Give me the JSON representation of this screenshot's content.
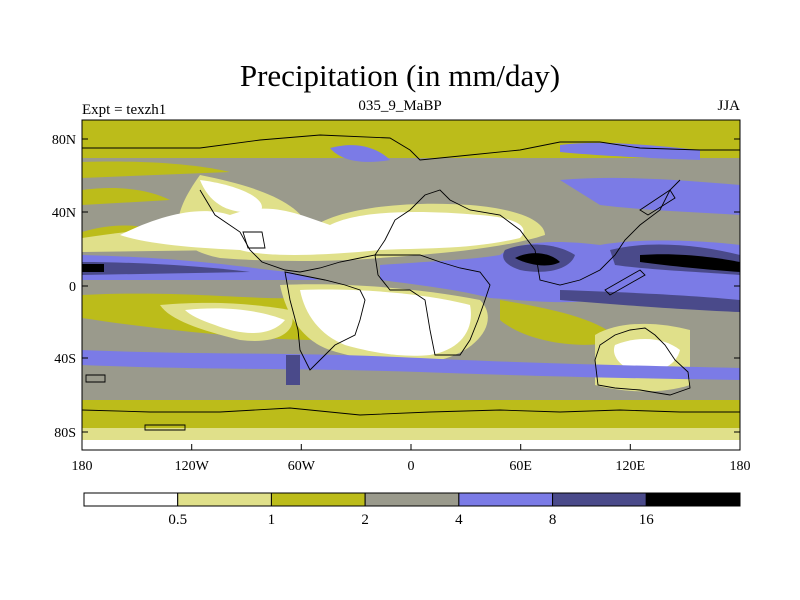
{
  "title": "Precipitation (in mm/day)",
  "left_label": "Expt = texzh1",
  "center_label": "035_9_MaBP",
  "right_label": "JJA",
  "colors": {
    "c1": "#ffffff",
    "c2": "#e0e08a",
    "c3": "#bcbc1a",
    "c4": "#9a9a8c",
    "c5": "#7b7be6",
    "c6": "#4a4a8a",
    "c7": "#000000",
    "coast": "#000000"
  },
  "map": {
    "y_tick_labels": [
      "80N",
      "40N",
      "0",
      "40S",
      "80S"
    ],
    "x_tick_labels": [
      "180",
      "120W",
      "60W",
      "0",
      "60E",
      "120E",
      "180"
    ]
  },
  "colorbar": {
    "labels": [
      "0.5",
      "1",
      "2",
      "4",
      "8",
      "16"
    ],
    "colors": [
      "#ffffff",
      "#e0e08a",
      "#bcbc1a",
      "#9a9a8c",
      "#7b7be6",
      "#4a4a8a",
      "#000000"
    ]
  }
}
